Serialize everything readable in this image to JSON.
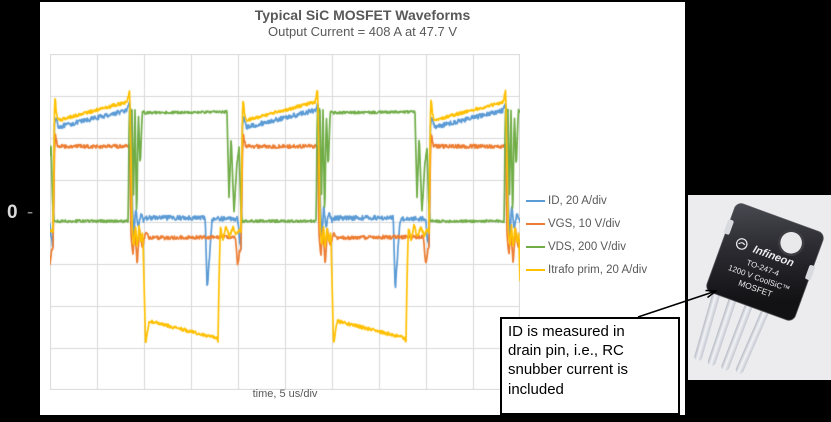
{
  "chart": {
    "title": "Typical SiC MOSFET Waveforms",
    "subtitle": "Output Current = 408 A at 47.7 V",
    "x_axis_label": "time, 5 us/div",
    "zero_label": "0",
    "zero_dash": "-",
    "grid_color": "#d9d9d9",
    "text_color": "#595959",
    "plot_bg": "#ffffff",
    "frame_color": "#000000",
    "legend": [
      {
        "label": "ID, 20 A/div",
        "color": "#5b9bd5"
      },
      {
        "label": "VGS, 10 V/div",
        "color": "#ed7d31"
      },
      {
        "label": "VDS, 200 V/div",
        "color": "#70ad47"
      },
      {
        "label": "Itrafo prim, 20 A/div",
        "color": "#ffc000"
      }
    ]
  },
  "chart_data": {
    "type": "line",
    "title": "Typical SiC MOSFET Waveforms",
    "subtitle": "Output Current = 408 A at 47.7 V",
    "xlabel": "time, 5 us/div",
    "x_divisions": 10,
    "y_divisions": 8,
    "zero_row": 4,
    "time_per_div_us": 5,
    "x_range_us": [
      0,
      50
    ],
    "grid": true,
    "legend_position": "right",
    "period_div": 4,
    "period_offset_div": 0.064,
    "series": [
      {
        "name": "ID",
        "units_per_div": "20 A/div",
        "color": "#5b9bd5",
        "noise_div": 0.055,
        "on_level_div": [
          2.26,
          2.66
        ],
        "off_level_div": 0.1,
        "points": [
          [
            0.0,
            -0.6
          ],
          [
            0.03,
            2.3
          ],
          [
            0.06,
            2.52
          ],
          [
            0.12,
            2.26
          ],
          [
            1.58,
            2.66
          ],
          [
            1.63,
            2.82
          ],
          [
            1.66,
            2.5
          ],
          [
            1.69,
            0.35
          ],
          [
            1.72,
            -0.42
          ],
          [
            1.76,
            0.38
          ],
          [
            1.81,
            -0.15
          ],
          [
            1.87,
            0.22
          ],
          [
            1.93,
            0.02
          ],
          [
            2.0,
            0.1
          ],
          [
            3.24,
            0.1
          ],
          [
            3.28,
            -1.65
          ],
          [
            3.33,
            -0.8
          ],
          [
            3.38,
            0.02
          ],
          [
            3.45,
            0.08
          ],
          [
            3.93,
            0.08
          ],
          [
            3.97,
            -0.45
          ]
        ]
      },
      {
        "name": "VGS",
        "units_per_div": "10 V/div",
        "color": "#ed7d31",
        "noise_div": 0.045,
        "on_level_div": 1.8,
        "off_level_div": -0.35,
        "points": [
          [
            0.0,
            -0.6
          ],
          [
            0.03,
            1.6
          ],
          [
            0.05,
            2.08
          ],
          [
            0.1,
            1.8
          ],
          [
            1.6,
            1.8
          ],
          [
            1.63,
            1.82
          ],
          [
            1.66,
            -0.3
          ],
          [
            1.7,
            -0.8
          ],
          [
            1.74,
            -0.12
          ],
          [
            1.79,
            -1.0
          ],
          [
            1.84,
            -0.18
          ],
          [
            1.9,
            -0.6
          ],
          [
            1.97,
            -0.25
          ],
          [
            2.05,
            -0.38
          ],
          [
            3.88,
            -0.35
          ],
          [
            3.93,
            -1.05
          ],
          [
            3.97,
            -0.7
          ]
        ]
      },
      {
        "name": "VDS",
        "units_per_div": "200 V/div",
        "color": "#70ad47",
        "noise_div": 0.03,
        "on_level_div": 0.0,
        "off_level_div": 2.62,
        "points": [
          [
            0.0,
            0.3
          ],
          [
            0.02,
            0.02
          ],
          [
            1.6,
            0.02
          ],
          [
            1.62,
            2.45
          ],
          [
            1.635,
            2.8
          ],
          [
            1.65,
            2.62
          ],
          [
            1.68,
            2.7
          ],
          [
            1.71,
            0.5
          ],
          [
            1.745,
            2.68
          ],
          [
            1.78,
            0.06
          ],
          [
            1.815,
            2.62
          ],
          [
            1.855,
            1.3
          ],
          [
            1.9,
            2.66
          ],
          [
            1.95,
            2.6
          ],
          [
            3.66,
            2.62
          ],
          [
            3.7,
            2.68
          ],
          [
            3.745,
            0.55
          ],
          [
            3.79,
            2.05
          ],
          [
            3.85,
            0.22
          ],
          [
            3.91,
            1.35
          ],
          [
            3.96,
            1.8
          ],
          [
            3.99,
            0.55
          ]
        ]
      },
      {
        "name": "Itrafo prim",
        "units_per_div": "20 A/div",
        "color": "#ffc000",
        "noise_div": 0.04,
        "on_level_div": [
          2.42,
          2.86
        ],
        "off_level_div": [
          -2.36,
          -2.76
        ],
        "points": [
          [
            0.0,
            -0.25
          ],
          [
            0.03,
            2.55
          ],
          [
            0.045,
            2.97
          ],
          [
            0.07,
            2.6
          ],
          [
            0.11,
            2.42
          ],
          [
            1.58,
            2.86
          ],
          [
            1.63,
            3.16
          ],
          [
            1.66,
            1.5
          ],
          [
            1.685,
            -0.2
          ],
          [
            1.72,
            -0.58
          ],
          [
            1.755,
            -0.1
          ],
          [
            1.79,
            -0.6
          ],
          [
            1.83,
            -0.12
          ],
          [
            1.87,
            -0.48
          ],
          [
            1.91,
            -0.2
          ],
          [
            1.945,
            -1.8
          ],
          [
            1.97,
            -2.94
          ],
          [
            2.01,
            -2.6
          ],
          [
            2.05,
            -2.36
          ],
          [
            3.48,
            -2.76
          ],
          [
            3.51,
            -2.85
          ],
          [
            3.53,
            -1.5
          ],
          [
            3.56,
            -0.12
          ],
          [
            3.62,
            -0.42
          ],
          [
            3.68,
            -0.08
          ],
          [
            3.75,
            -0.35
          ],
          [
            3.83,
            -0.12
          ],
          [
            3.9,
            -0.32
          ],
          [
            3.96,
            -0.18
          ]
        ]
      }
    ]
  },
  "callout": {
    "text": "ID is measured in\ndrain pin, i.e., RC\nsnubber current is\nincluded"
  },
  "package_image": {
    "brand": "Infineon",
    "lines": [
      "TO-247-4",
      "1200 V CoolSiC™",
      "MOSFET"
    ]
  }
}
